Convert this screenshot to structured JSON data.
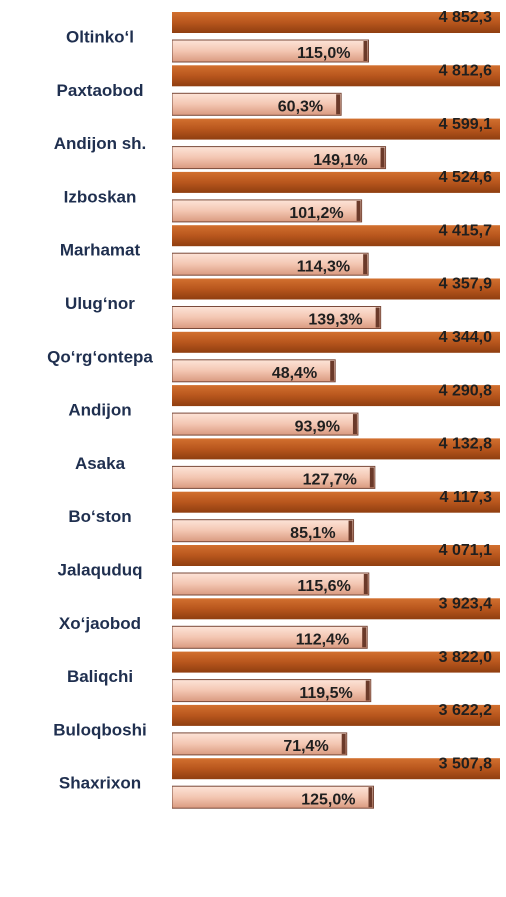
{
  "chart_data": {
    "type": "bar",
    "orientation": "horizontal",
    "categories": [
      "Oltinko‘l",
      "Paxtaobod",
      "Andijon sh.",
      "Izboskan",
      "Marhamat",
      "Ulug‘nor",
      "Qo‘rg‘ontepa",
      "Andijon",
      "Asaka",
      "Bo‘ston",
      "Jalaquduq",
      "Xo‘jaobod",
      "Baliqchi",
      "Buloqboshi",
      "Shaxrixon"
    ],
    "series": [
      {
        "color": "#b8561d",
        "values": [
          4852.3,
          4812.6,
          4599.1,
          4524.6,
          4415.7,
          4357.9,
          4344.0,
          4290.8,
          4132.8,
          4117.3,
          4071.1,
          3923.4,
          3822.0,
          3622.2,
          3507.8
        ],
        "value_labels": [
          "4 852,3",
          "4 812,6",
          "4 599,1",
          "4 524,6",
          "4 415,7",
          "4 357,9",
          "4 344,0",
          "4 290,8",
          "4 132,8",
          "4 117,3",
          "4 071,1",
          "3 923,4",
          "3 822,0",
          "3 622,2",
          "3 507,8"
        ]
      },
      {
        "color": "#f3c6b2",
        "values": [
          115.0,
          60.3,
          149.1,
          101.2,
          114.3,
          139.3,
          48.4,
          93.9,
          127.7,
          85.1,
          115.6,
          112.4,
          119.5,
          71.4,
          125.0
        ],
        "value_labels": [
          "115,0%",
          "60,3%",
          "149,1%",
          "101,2%",
          "114,3%",
          "139,3%",
          "48,4%",
          "93,9%",
          "127,7%",
          "85,1%",
          "115,6%",
          "112,4%",
          "119,5%",
          "71,4%",
          "125,0%"
        ]
      }
    ],
    "xlim": [
      -278,
      378
    ]
  }
}
